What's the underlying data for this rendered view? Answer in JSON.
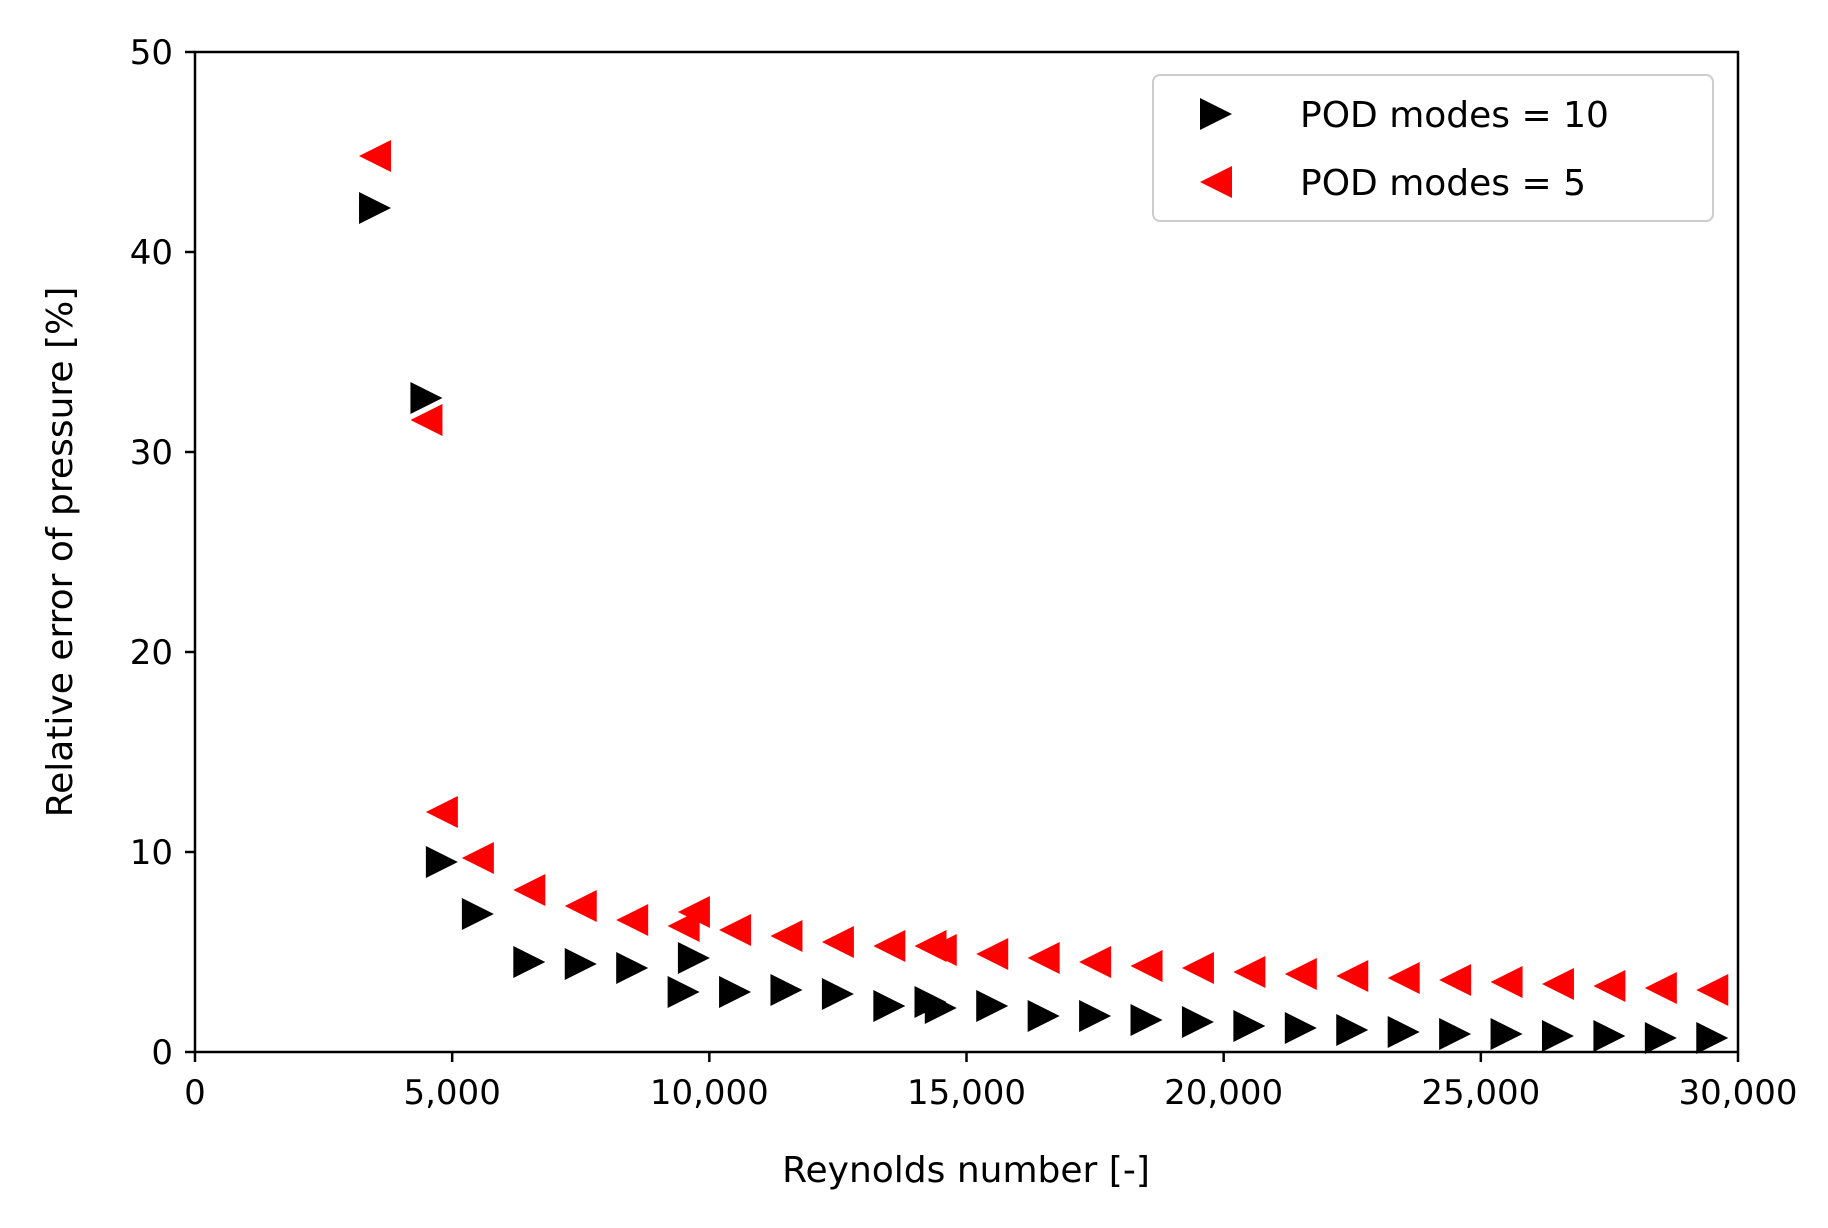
{
  "chart_data": {
    "type": "scatter",
    "title": "",
    "xlabel": "Reynolds number [-]",
    "ylabel": "Relative error of pressure [%]",
    "xlim": [
      0,
      30000
    ],
    "ylim": [
      0,
      50
    ],
    "xticks": [
      0,
      5000,
      10000,
      15000,
      20000,
      25000,
      30000
    ],
    "xtick_labels": [
      "0",
      "5,000",
      "10,000",
      "15,000",
      "20,000",
      "25,000",
      "30,000"
    ],
    "yticks": [
      0,
      10,
      20,
      30,
      40,
      50
    ],
    "ytick_labels": [
      "0",
      "10",
      "20",
      "30",
      "40",
      "50"
    ],
    "grid": false,
    "legend_position": "top-right",
    "series": [
      {
        "name": "POD modes = 10",
        "marker": "triangle-right",
        "color": "#000000",
        "points": [
          [
            3500,
            42.2
          ],
          [
            4500,
            32.7
          ],
          [
            4800,
            9.5
          ],
          [
            5500,
            6.9
          ],
          [
            6500,
            4.5
          ],
          [
            7500,
            4.4
          ],
          [
            8500,
            4.2
          ],
          [
            9500,
            3.0
          ],
          [
            9700,
            4.7
          ],
          [
            10500,
            3.0
          ],
          [
            11500,
            3.1
          ],
          [
            12500,
            2.9
          ],
          [
            13500,
            2.3
          ],
          [
            14300,
            2.5
          ],
          [
            14500,
            2.2
          ],
          [
            15500,
            2.3
          ],
          [
            16500,
            1.8
          ],
          [
            17500,
            1.8
          ],
          [
            18500,
            1.6
          ],
          [
            19500,
            1.5
          ],
          [
            20500,
            1.3
          ],
          [
            21500,
            1.2
          ],
          [
            22500,
            1.1
          ],
          [
            23500,
            1.0
          ],
          [
            24500,
            0.9
          ],
          [
            25500,
            0.9
          ],
          [
            26500,
            0.8
          ],
          [
            27500,
            0.8
          ],
          [
            28500,
            0.7
          ],
          [
            29500,
            0.7
          ]
        ]
      },
      {
        "name": "POD modes = 5",
        "marker": "triangle-left",
        "color": "#ff0000",
        "points": [
          [
            3500,
            44.8
          ],
          [
            4500,
            31.6
          ],
          [
            4800,
            12.0
          ],
          [
            5500,
            9.7
          ],
          [
            6500,
            8.1
          ],
          [
            7500,
            7.3
          ],
          [
            8500,
            6.6
          ],
          [
            9500,
            6.3
          ],
          [
            9700,
            7.0
          ],
          [
            10500,
            6.1
          ],
          [
            11500,
            5.8
          ],
          [
            12500,
            5.5
          ],
          [
            13500,
            5.3
          ],
          [
            14300,
            5.3
          ],
          [
            14500,
            5.1
          ],
          [
            15500,
            4.9
          ],
          [
            16500,
            4.7
          ],
          [
            17500,
            4.5
          ],
          [
            18500,
            4.3
          ],
          [
            19500,
            4.2
          ],
          [
            20500,
            4.0
          ],
          [
            21500,
            3.9
          ],
          [
            22500,
            3.8
          ],
          [
            23500,
            3.7
          ],
          [
            24500,
            3.6
          ],
          [
            25500,
            3.5
          ],
          [
            26500,
            3.4
          ],
          [
            27500,
            3.3
          ],
          [
            28500,
            3.2
          ],
          [
            29500,
            3.1
          ]
        ]
      }
    ]
  }
}
